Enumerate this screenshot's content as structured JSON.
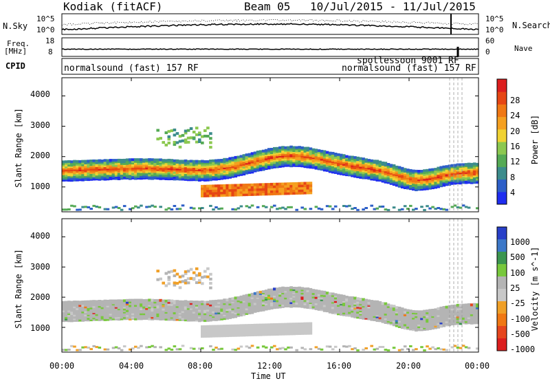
{
  "header": {
    "radar": "Kodiak (fitACF)",
    "beam": "Beam 05",
    "date_range": "10/Jul/2015 - 11/Jul/2015"
  },
  "strips": {
    "nsky_label": "N.Sky",
    "nsky_ticks": [
      "10^5",
      "10^0"
    ],
    "nsearch_label": "N.Search",
    "nsearch_ticks": [
      "10^5",
      "10^0"
    ],
    "freq_label_1": "Freq.",
    "freq_label_2": "[MHz]",
    "freq_ticks": [
      "18",
      "8"
    ],
    "nave_label": "Nave",
    "nave_ticks": [
      "60",
      "0"
    ],
    "cpid_label": "CPID",
    "cpid_text": "normalsound (fast) 157 RF",
    "cpid_text_2": "normalsound (fast) 157 RF",
    "cpid_overlap": "spotlessoon 9001 RF"
  },
  "colors": {
    "power_scale": [
      "#1e2df0",
      "#2d5fc8",
      "#3c8c8c",
      "#55aa55",
      "#8cc850",
      "#f0d232",
      "#f5a020",
      "#f07814",
      "#e64614",
      "#dc1e1e"
    ],
    "velocity_scale": [
      "#2840c8",
      "#3c78c8",
      "#3c9650",
      "#78c83c",
      "#b4b4b4",
      "#c8c8c8",
      "#f0a028",
      "#f07814",
      "#e6461e",
      "#dc1e1e"
    ]
  },
  "chart_data": [
    {
      "type": "heatmap",
      "title": "Power",
      "ylabel": "Slant Range [km]",
      "xlabel": "Time UT",
      "ylim": [
        180,
        4600
      ],
      "yticks": [
        "1000",
        "2000",
        "3000",
        "4000"
      ],
      "x_ticks": [
        "00:00",
        "04:00",
        "08:00",
        "12:00",
        "16:00",
        "20:00",
        "00:00"
      ],
      "colorbar_label": "Power [dB]",
      "colorbar_ticks": [
        "4",
        "8",
        "12",
        "16",
        "20",
        "24",
        "28"
      ]
    },
    {
      "type": "heatmap",
      "title": "Velocity",
      "ylabel": "Slant Range [km]",
      "xlabel": "Time UT",
      "ylim": [
        180,
        4600
      ],
      "yticks": [
        "1000",
        "2000",
        "3000",
        "4000"
      ],
      "x_ticks": [
        "00:00",
        "04:00",
        "08:00",
        "12:00",
        "16:00",
        "20:00",
        "00:00"
      ],
      "colorbar_label": "Velocity [m s^-1]",
      "colorbar_ticks": [
        "1000",
        "500",
        "100",
        "25",
        "-25",
        "-100",
        "-500",
        "-1000"
      ]
    }
  ]
}
